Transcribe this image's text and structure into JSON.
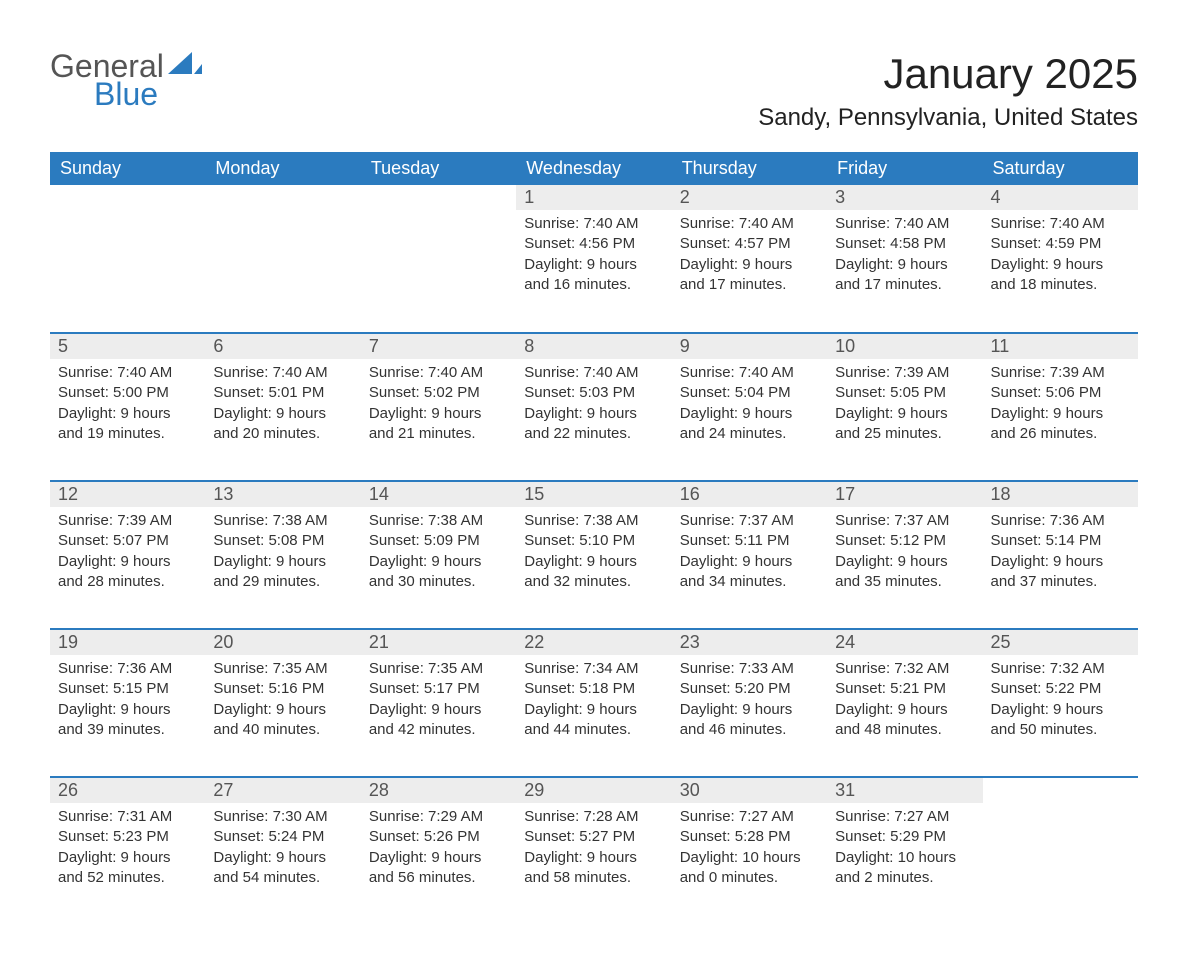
{
  "logo": {
    "word1": "General",
    "word2": "Blue"
  },
  "title": "January 2025",
  "location": "Sandy, Pennsylvania, United States",
  "colors": {
    "header_bg": "#2b7bbf",
    "header_text": "#ffffff",
    "daynum_bg": "#ededed",
    "daynum_text": "#555555",
    "rule": "#2b7bbf",
    "body_text": "#333333",
    "logo_gray": "#555555",
    "logo_blue": "#2b7bbf"
  },
  "weekdays": [
    "Sunday",
    "Monday",
    "Tuesday",
    "Wednesday",
    "Thursday",
    "Friday",
    "Saturday"
  ],
  "weeks": [
    [
      null,
      null,
      null,
      {
        "n": "1",
        "sunrise": "7:40 AM",
        "sunset": "4:56 PM",
        "daylight": "9 hours and 16 minutes."
      },
      {
        "n": "2",
        "sunrise": "7:40 AM",
        "sunset": "4:57 PM",
        "daylight": "9 hours and 17 minutes."
      },
      {
        "n": "3",
        "sunrise": "7:40 AM",
        "sunset": "4:58 PM",
        "daylight": "9 hours and 17 minutes."
      },
      {
        "n": "4",
        "sunrise": "7:40 AM",
        "sunset": "4:59 PM",
        "daylight": "9 hours and 18 minutes."
      }
    ],
    [
      {
        "n": "5",
        "sunrise": "7:40 AM",
        "sunset": "5:00 PM",
        "daylight": "9 hours and 19 minutes."
      },
      {
        "n": "6",
        "sunrise": "7:40 AM",
        "sunset": "5:01 PM",
        "daylight": "9 hours and 20 minutes."
      },
      {
        "n": "7",
        "sunrise": "7:40 AM",
        "sunset": "5:02 PM",
        "daylight": "9 hours and 21 minutes."
      },
      {
        "n": "8",
        "sunrise": "7:40 AM",
        "sunset": "5:03 PM",
        "daylight": "9 hours and 22 minutes."
      },
      {
        "n": "9",
        "sunrise": "7:40 AM",
        "sunset": "5:04 PM",
        "daylight": "9 hours and 24 minutes."
      },
      {
        "n": "10",
        "sunrise": "7:39 AM",
        "sunset": "5:05 PM",
        "daylight": "9 hours and 25 minutes."
      },
      {
        "n": "11",
        "sunrise": "7:39 AM",
        "sunset": "5:06 PM",
        "daylight": "9 hours and 26 minutes."
      }
    ],
    [
      {
        "n": "12",
        "sunrise": "7:39 AM",
        "sunset": "5:07 PM",
        "daylight": "9 hours and 28 minutes."
      },
      {
        "n": "13",
        "sunrise": "7:38 AM",
        "sunset": "5:08 PM",
        "daylight": "9 hours and 29 minutes."
      },
      {
        "n": "14",
        "sunrise": "7:38 AM",
        "sunset": "5:09 PM",
        "daylight": "9 hours and 30 minutes."
      },
      {
        "n": "15",
        "sunrise": "7:38 AM",
        "sunset": "5:10 PM",
        "daylight": "9 hours and 32 minutes."
      },
      {
        "n": "16",
        "sunrise": "7:37 AM",
        "sunset": "5:11 PM",
        "daylight": "9 hours and 34 minutes."
      },
      {
        "n": "17",
        "sunrise": "7:37 AM",
        "sunset": "5:12 PM",
        "daylight": "9 hours and 35 minutes."
      },
      {
        "n": "18",
        "sunrise": "7:36 AM",
        "sunset": "5:14 PM",
        "daylight": "9 hours and 37 minutes."
      }
    ],
    [
      {
        "n": "19",
        "sunrise": "7:36 AM",
        "sunset": "5:15 PM",
        "daylight": "9 hours and 39 minutes."
      },
      {
        "n": "20",
        "sunrise": "7:35 AM",
        "sunset": "5:16 PM",
        "daylight": "9 hours and 40 minutes."
      },
      {
        "n": "21",
        "sunrise": "7:35 AM",
        "sunset": "5:17 PM",
        "daylight": "9 hours and 42 minutes."
      },
      {
        "n": "22",
        "sunrise": "7:34 AM",
        "sunset": "5:18 PM",
        "daylight": "9 hours and 44 minutes."
      },
      {
        "n": "23",
        "sunrise": "7:33 AM",
        "sunset": "5:20 PM",
        "daylight": "9 hours and 46 minutes."
      },
      {
        "n": "24",
        "sunrise": "7:32 AM",
        "sunset": "5:21 PM",
        "daylight": "9 hours and 48 minutes."
      },
      {
        "n": "25",
        "sunrise": "7:32 AM",
        "sunset": "5:22 PM",
        "daylight": "9 hours and 50 minutes."
      }
    ],
    [
      {
        "n": "26",
        "sunrise": "7:31 AM",
        "sunset": "5:23 PM",
        "daylight": "9 hours and 52 minutes."
      },
      {
        "n": "27",
        "sunrise": "7:30 AM",
        "sunset": "5:24 PM",
        "daylight": "9 hours and 54 minutes."
      },
      {
        "n": "28",
        "sunrise": "7:29 AM",
        "sunset": "5:26 PM",
        "daylight": "9 hours and 56 minutes."
      },
      {
        "n": "29",
        "sunrise": "7:28 AM",
        "sunset": "5:27 PM",
        "daylight": "9 hours and 58 minutes."
      },
      {
        "n": "30",
        "sunrise": "7:27 AM",
        "sunset": "5:28 PM",
        "daylight": "10 hours and 0 minutes."
      },
      {
        "n": "31",
        "sunrise": "7:27 AM",
        "sunset": "5:29 PM",
        "daylight": "10 hours and 2 minutes."
      },
      null
    ]
  ],
  "labels": {
    "sunrise": "Sunrise: ",
    "sunset": "Sunset: ",
    "daylight": "Daylight: "
  }
}
